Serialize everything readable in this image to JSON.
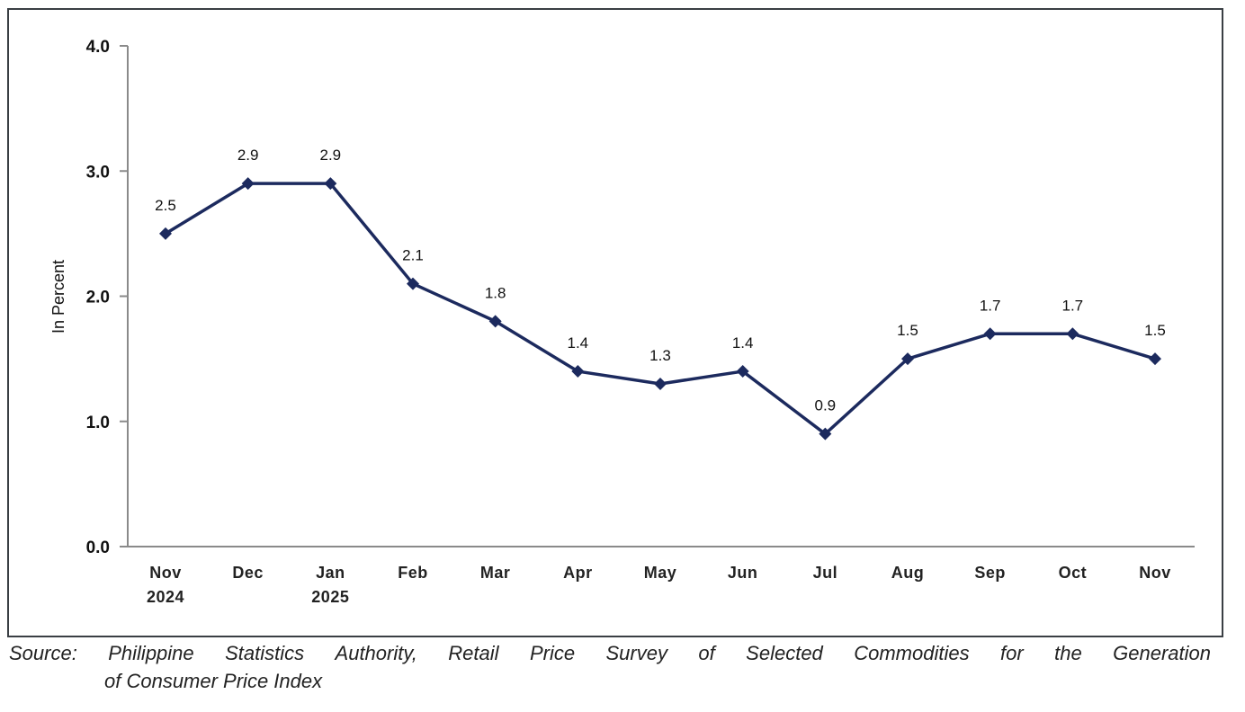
{
  "chart_data": {
    "type": "line",
    "title": "",
    "xlabel": "",
    "ylabel": "In Percent",
    "ylim": [
      0.0,
      4.0
    ],
    "yticks": [
      "0.0",
      "1.0",
      "2.0",
      "3.0",
      "4.0"
    ],
    "grid": false,
    "categories": [
      [
        "Nov",
        "2024"
      ],
      [
        "Dec"
      ],
      [
        "Jan",
        "2025"
      ],
      [
        "Feb"
      ],
      [
        "Mar"
      ],
      [
        "Apr"
      ],
      [
        "May"
      ],
      [
        "Jun"
      ],
      [
        "Jul"
      ],
      [
        "Aug"
      ],
      [
        "Sep"
      ],
      [
        "Oct"
      ],
      [
        "Nov"
      ]
    ],
    "series": [
      {
        "name": "Inflation rate",
        "color": "#1c2a5e",
        "marker": "diamond",
        "values": [
          2.5,
          2.9,
          2.9,
          2.1,
          1.8,
          1.4,
          1.3,
          1.4,
          0.9,
          1.5,
          1.7,
          1.7,
          1.5
        ],
        "labels": [
          "2.5",
          "2.9",
          "2.9",
          "2.1",
          "1.8",
          "1.4",
          "1.3",
          "1.4",
          "0.9",
          "1.5",
          "1.7",
          "1.7",
          "1.5"
        ]
      }
    ]
  },
  "source": {
    "line1_words": [
      "Source:",
      "Philippine",
      "Statistics",
      "Authority,",
      "Retail",
      "Price",
      "Survey",
      "of",
      "Selected",
      "Commodities",
      "for",
      "the",
      "Generation"
    ],
    "line2": "of Consumer Price Index"
  }
}
